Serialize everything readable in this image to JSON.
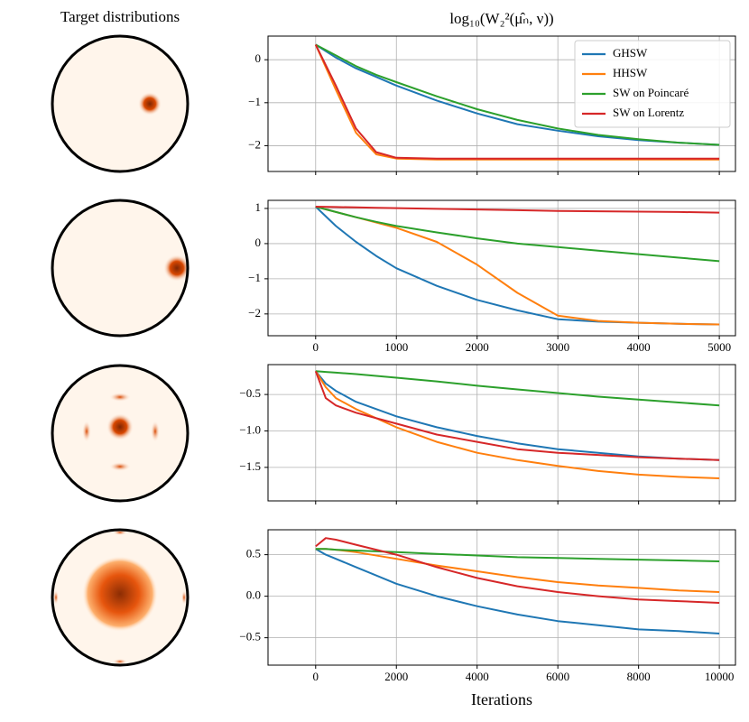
{
  "left_title": "Target distributions",
  "chart_data": [
    {
      "type": "line",
      "title": "log₁₀(W₂²(μ̂ₙ, ν))",
      "x": [
        0,
        250,
        500,
        750,
        1000,
        1500,
        2000,
        2500,
        3000,
        3500,
        4000,
        4500,
        5000
      ],
      "xlim": [
        -590,
        5200
      ],
      "xticks": [
        0,
        1000,
        2000,
        3000,
        4000,
        5000
      ],
      "show_xtick_labels": false,
      "ylim": [
        -2.6,
        0.55
      ],
      "yticks": [
        0,
        {
          "value": -1,
          "label": "−1"
        },
        {
          "value": -2,
          "label": "−2"
        }
      ],
      "grid": true,
      "legend": "upper right",
      "series": [
        {
          "name": "GHSW",
          "color": "#1f77b4",
          "values": [
            0.35,
            0.05,
            -0.2,
            -0.4,
            -0.6,
            -0.95,
            -1.25,
            -1.5,
            -1.65,
            -1.78,
            -1.87,
            -1.93,
            -1.98
          ]
        },
        {
          "name": "HHSW",
          "color": "#ff7f0e",
          "values": [
            0.35,
            -0.7,
            -1.7,
            -2.2,
            -2.3,
            -2.32,
            -2.32,
            -2.32,
            -2.32,
            -2.32,
            -2.32,
            -2.32,
            -2.32
          ]
        },
        {
          "name": "SW on Poincaré",
          "color": "#2ca02c",
          "values": [
            0.35,
            0.1,
            -0.15,
            -0.35,
            -0.52,
            -0.85,
            -1.15,
            -1.4,
            -1.6,
            -1.75,
            -1.85,
            -1.93,
            -1.98
          ]
        },
        {
          "name": "SW on Lorentz",
          "color": "#d62728",
          "values": [
            0.35,
            -0.6,
            -1.6,
            -2.15,
            -2.28,
            -2.3,
            -2.3,
            -2.3,
            -2.3,
            -2.3,
            -2.3,
            -2.3,
            -2.3
          ]
        }
      ]
    },
    {
      "type": "line",
      "x": [
        0,
        250,
        500,
        750,
        1000,
        1500,
        2000,
        2500,
        3000,
        3500,
        4000,
        4500,
        5000
      ],
      "xlim": [
        -590,
        5200
      ],
      "xticks": [
        0,
        1000,
        2000,
        3000,
        4000,
        5000
      ],
      "show_xtick_labels": true,
      "ylim": [
        -2.62,
        1.23
      ],
      "yticks": [
        1,
        0,
        {
          "value": -1,
          "label": "−1"
        },
        {
          "value": -2,
          "label": "−2"
        }
      ],
      "grid": true,
      "series": [
        {
          "color": "#1f77b4",
          "values": [
            1.05,
            0.5,
            0.05,
            -0.35,
            -0.7,
            -1.2,
            -1.6,
            -1.9,
            -2.15,
            -2.22,
            -2.25,
            -2.28,
            -2.3
          ]
        },
        {
          "color": "#ff7f0e",
          "values": [
            1.05,
            0.9,
            0.75,
            0.6,
            0.45,
            0.05,
            -0.6,
            -1.4,
            -2.05,
            -2.2,
            -2.25,
            -2.28,
            -2.3
          ]
        },
        {
          "color": "#2ca02c",
          "values": [
            1.05,
            0.9,
            0.75,
            0.62,
            0.5,
            0.32,
            0.15,
            0.0,
            -0.1,
            -0.2,
            -0.3,
            -0.4,
            -0.5
          ]
        },
        {
          "color": "#d62728",
          "values": [
            1.05,
            1.04,
            1.03,
            1.02,
            1.01,
            0.99,
            0.97,
            0.95,
            0.93,
            0.92,
            0.91,
            0.9,
            0.88
          ]
        }
      ]
    },
    {
      "type": "line",
      "x": [
        0,
        250,
        500,
        1000,
        2000,
        3000,
        4000,
        5000,
        6000,
        7000,
        8000,
        9000,
        10000
      ],
      "xlim": [
        -1180,
        10400
      ],
      "xticks": [
        0,
        2000,
        4000,
        6000,
        8000,
        10000
      ],
      "show_xtick_labels": false,
      "ylim": [
        -1.96,
        -0.09
      ],
      "yticks": [
        {
          "value": -0.5,
          "label": "−0.5"
        },
        {
          "value": -1,
          "label": "−1.0"
        },
        {
          "value": -1.5,
          "label": "−1.5"
        }
      ],
      "grid": true,
      "series": [
        {
          "color": "#1f77b4",
          "values": [
            -0.18,
            -0.35,
            -0.45,
            -0.6,
            -0.8,
            -0.95,
            -1.07,
            -1.17,
            -1.25,
            -1.3,
            -1.35,
            -1.38,
            -1.4
          ]
        },
        {
          "color": "#ff7f0e",
          "values": [
            -0.18,
            -0.4,
            -0.55,
            -0.7,
            -0.95,
            -1.15,
            -1.3,
            -1.4,
            -1.48,
            -1.55,
            -1.6,
            -1.63,
            -1.65
          ]
        },
        {
          "color": "#2ca02c",
          "values": [
            -0.18,
            -0.19,
            -0.2,
            -0.22,
            -0.27,
            -0.32,
            -0.38,
            -0.43,
            -0.48,
            -0.53,
            -0.57,
            -0.61,
            -0.65
          ]
        },
        {
          "color": "#d62728",
          "values": [
            -0.18,
            -0.55,
            -0.65,
            -0.75,
            -0.9,
            -1.05,
            -1.15,
            -1.25,
            -1.3,
            -1.33,
            -1.36,
            -1.38,
            -1.4
          ]
        }
      ]
    },
    {
      "type": "line",
      "xlabel": "Iterations",
      "x": [
        0,
        250,
        500,
        1000,
        2000,
        3000,
        4000,
        5000,
        6000,
        7000,
        8000,
        9000,
        10000
      ],
      "xlim": [
        -1180,
        10400
      ],
      "xticks": [
        0,
        2000,
        4000,
        6000,
        8000,
        10000
      ],
      "show_xtick_labels": true,
      "ylim": [
        -0.83,
        0.8
      ],
      "yticks": [
        {
          "value": 0.5,
          "label": "0.5"
        },
        {
          "value": 0,
          "label": "0.0"
        },
        {
          "value": -0.5,
          "label": "−0.5"
        }
      ],
      "grid": true,
      "series": [
        {
          "color": "#1f77b4",
          "values": [
            0.57,
            0.5,
            0.45,
            0.35,
            0.15,
            0.0,
            -0.12,
            -0.22,
            -0.3,
            -0.35,
            -0.4,
            -0.42,
            -0.45
          ]
        },
        {
          "color": "#ff7f0e",
          "values": [
            0.57,
            0.57,
            0.56,
            0.53,
            0.45,
            0.37,
            0.3,
            0.23,
            0.17,
            0.13,
            0.1,
            0.07,
            0.05
          ]
        },
        {
          "color": "#2ca02c",
          "values": [
            0.57,
            0.57,
            0.56,
            0.55,
            0.53,
            0.51,
            0.49,
            0.47,
            0.46,
            0.45,
            0.44,
            0.43,
            0.42
          ]
        },
        {
          "color": "#d62728",
          "values": [
            0.6,
            0.7,
            0.68,
            0.62,
            0.5,
            0.35,
            0.22,
            0.12,
            0.05,
            0.0,
            -0.04,
            -0.06,
            -0.08
          ]
        }
      ]
    }
  ]
}
